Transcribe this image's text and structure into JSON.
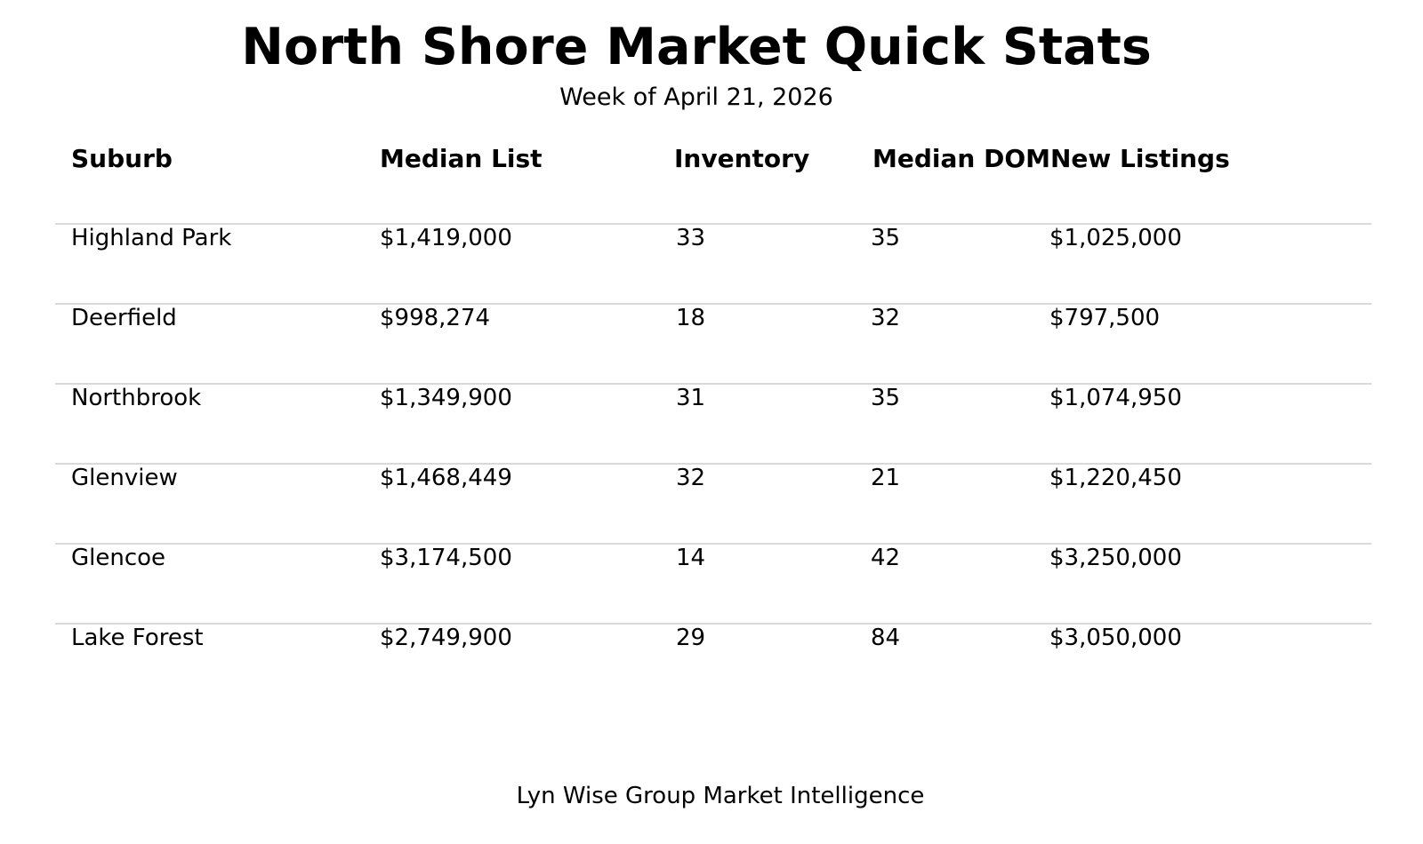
{
  "page": {
    "title": "North Shore Market Quick Stats",
    "subtitle": "Week of April 21, 2026",
    "footer": "Lyn Wise Group Market Intelligence"
  },
  "chart_data": {
    "type": "table",
    "title": "North Shore Market Quick Stats",
    "subtitle": "Week of April 21, 2026",
    "columns": [
      "Suburb",
      "Median List",
      "Inventory",
      "Median DOM",
      "New Listings"
    ],
    "rows": [
      [
        "Highland Park",
        "$1,419,000",
        "33",
        "35",
        "$1,025,000"
      ],
      [
        "Deerfield",
        "$998,274",
        "18",
        "32",
        "$797,500"
      ],
      [
        "Northbrook",
        "$1,349,900",
        "31",
        "35",
        "$1,074,950"
      ],
      [
        "Glenview",
        "$1,468,449",
        "32",
        "21",
        "$1,220,450"
      ],
      [
        "Glencoe",
        "$3,174,500",
        "14",
        "42",
        "$3,250,000"
      ],
      [
        "Lake Forest",
        "$2,749,900",
        "29",
        "84",
        "$3,050,000"
      ]
    ],
    "footer": "Lyn Wise Group Market Intelligence",
    "layout_hints": {
      "header_style": "bold, left-aligned",
      "dividers": "light gray horizontal line above each data row",
      "note": "Median DOM and New Listings headers render adjacent with no space between them"
    }
  },
  "colors": {
    "text": "#000000",
    "divider": "#d9d9d9",
    "background": "#ffffff"
  }
}
